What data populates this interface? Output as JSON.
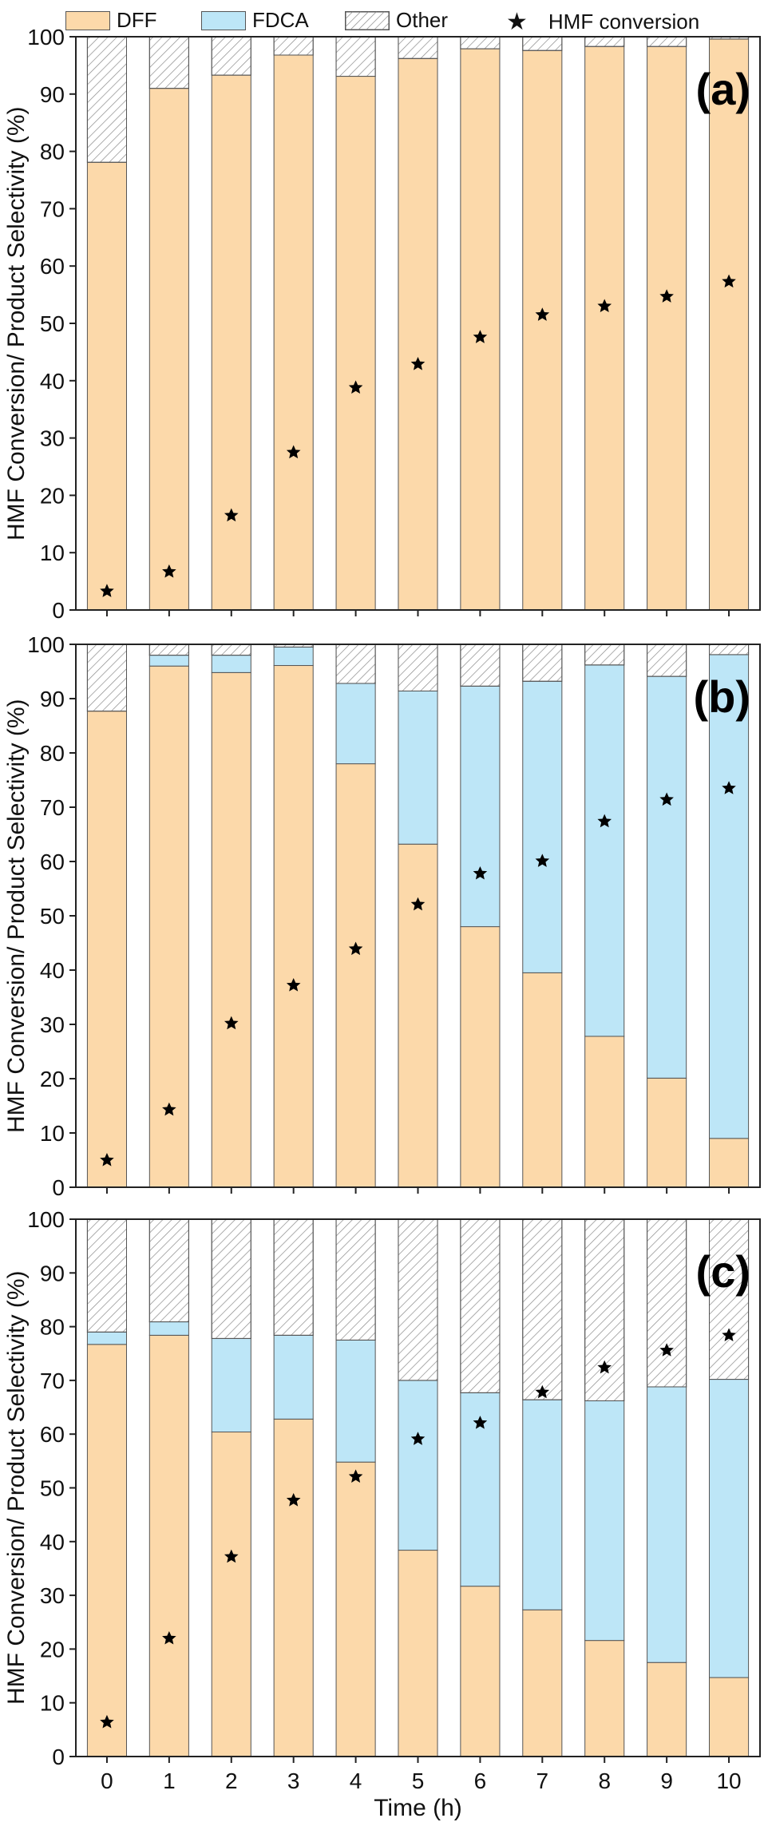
{
  "legend": {
    "dff": "DFF",
    "fdca": "FDCA",
    "other": "Other",
    "star": "HMF conversion"
  },
  "colors": {
    "dff": "#fcd9aa",
    "fdca": "#bde6f7",
    "other_hatch": "#8a8a8a",
    "star": "#000000",
    "axis": "#222222"
  },
  "axes": {
    "ylabel": "HMF Conversion/ Product Selectivity (%)",
    "xlabel": "Time (h)",
    "ylim": [
      0,
      100
    ],
    "yticks": [
      0,
      10,
      20,
      30,
      40,
      50,
      60,
      70,
      80,
      90,
      100
    ],
    "xticks": [
      0,
      1,
      2,
      3,
      4,
      5,
      6,
      7,
      8,
      9,
      10
    ]
  },
  "chart_data": [
    {
      "type": "bar",
      "stacked": true,
      "panel_label": "(a)",
      "categories": [
        0,
        1,
        2,
        3,
        4,
        5,
        6,
        7,
        8,
        9,
        10
      ],
      "series": [
        {
          "name": "DFF",
          "values": [
            78.1,
            91.0,
            93.3,
            96.8,
            93.1,
            96.2,
            97.9,
            97.6,
            98.3,
            98.3,
            99.6
          ]
        },
        {
          "name": "FDCA",
          "values": [
            0,
            0,
            0,
            0,
            0,
            0,
            0,
            0,
            0,
            0,
            0
          ]
        },
        {
          "name": "Other",
          "values": [
            21.9,
            9.0,
            6.7,
            3.2,
            6.9,
            3.8,
            2.1,
            2.4,
            1.7,
            1.7,
            0.4
          ]
        }
      ],
      "conversion": {
        "name": "HMF conversion",
        "values": [
          3.3,
          6.7,
          16.5,
          27.5,
          38.8,
          42.9,
          47.6,
          51.5,
          53.0,
          54.7,
          57.3
        ]
      },
      "ylim": [
        0,
        100
      ]
    },
    {
      "type": "bar",
      "stacked": true,
      "panel_label": "(b)",
      "categories": [
        0,
        1,
        2,
        3,
        4,
        5,
        6,
        7,
        8,
        9,
        10
      ],
      "series": [
        {
          "name": "DFF",
          "values": [
            87.7,
            96.0,
            94.8,
            96.1,
            78.0,
            63.2,
            48.0,
            39.5,
            27.8,
            20.1,
            9.0
          ]
        },
        {
          "name": "FDCA",
          "values": [
            0,
            2.0,
            3.2,
            3.4,
            14.8,
            28.2,
            44.3,
            53.7,
            68.4,
            74.0,
            89.1
          ]
        },
        {
          "name": "Other",
          "values": [
            12.3,
            2.0,
            2.0,
            0.5,
            7.2,
            8.6,
            7.7,
            6.8,
            3.8,
            5.9,
            1.9
          ]
        }
      ],
      "conversion": {
        "name": "HMF conversion",
        "values": [
          5.0,
          14.3,
          30.2,
          37.2,
          43.9,
          52.1,
          57.8,
          60.1,
          67.4,
          71.4,
          73.5
        ]
      },
      "ylim": [
        0,
        100
      ]
    },
    {
      "type": "bar",
      "stacked": true,
      "panel_label": "(c)",
      "categories": [
        0,
        1,
        2,
        3,
        4,
        5,
        6,
        7,
        8,
        9,
        10
      ],
      "series": [
        {
          "name": "DFF",
          "values": [
            76.7,
            78.4,
            60.4,
            62.8,
            54.8,
            38.4,
            31.7,
            27.3,
            21.6,
            17.5,
            14.7
          ]
        },
        {
          "name": "FDCA",
          "values": [
            2.3,
            2.5,
            17.4,
            15.6,
            22.7,
            31.6,
            36.0,
            39.1,
            44.6,
            51.3,
            55.5
          ]
        },
        {
          "name": "Other",
          "values": [
            21.0,
            19.1,
            22.2,
            21.6,
            22.5,
            30.0,
            32.3,
            33.6,
            33.8,
            31.2,
            29.8
          ]
        }
      ],
      "conversion": {
        "name": "HMF conversion",
        "values": [
          6.4,
          22.0,
          37.2,
          47.7,
          52.1,
          59.1,
          62.1,
          67.8,
          72.4,
          75.6,
          78.4
        ]
      },
      "ylim": [
        0,
        100
      ]
    }
  ]
}
